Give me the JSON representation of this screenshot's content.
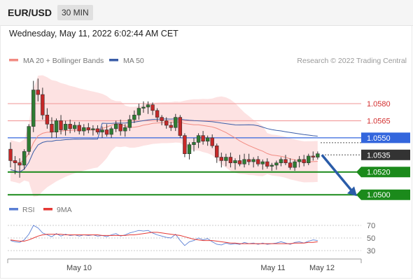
{
  "header": {
    "symbol": "EUR/USD",
    "timeframe": "30 MIN"
  },
  "timestamp": "Wednesday, May 11, 2022 6:02:44 AM CET",
  "legend": {
    "items": [
      {
        "label": "MA 20 + Bollinger Bands",
        "color": "#f28b82"
      },
      {
        "label": "MA 50",
        "color": "#3b5ea8"
      }
    ],
    "copyright": "Research © 2022 Trading Central"
  },
  "rsi_legend": {
    "items": [
      {
        "label": "RSI",
        "color": "#5b7fd4"
      },
      {
        "label": "9MA",
        "color": "#e53935"
      }
    ]
  },
  "colors": {
    "up": "#2e7d32",
    "down": "#c62828",
    "green_level": "#1b8a1b",
    "blue_level": "#3366dd",
    "red_level": "#f2a0a0",
    "band": "#fde2e2",
    "arrow": "#2a5ca8"
  },
  "chart_data": [
    {
      "type": "candlestick",
      "yrange": [
        1.0494,
        1.0612
      ],
      "levels": [
        {
          "value": 1.058,
          "label": "1.0580",
          "kind": "resistance-red"
        },
        {
          "value": 1.0565,
          "label": "1.0565",
          "kind": "resistance-red"
        },
        {
          "value": 1.055,
          "label": "1.0550",
          "kind": "blue"
        },
        {
          "value": 1.0535,
          "label": "1.0535",
          "kind": "current"
        },
        {
          "value": 1.052,
          "label": "1.0520",
          "kind": "support-green"
        },
        {
          "value": 1.05,
          "label": "1.0500",
          "kind": "target-green"
        }
      ],
      "x_labels": [
        "May 10",
        "May 11",
        "May 12"
      ],
      "forecast": {
        "from": 1.0535,
        "to": 1.05,
        "direction": "down"
      },
      "candles": [
        [
          1.054,
          1.0546,
          1.0524,
          1.053
        ],
        [
          1.053,
          1.0534,
          1.0518,
          1.0528
        ],
        [
          1.0528,
          1.0532,
          1.0515,
          1.0526
        ],
        [
          1.0526,
          1.054,
          1.0522,
          1.0538
        ],
        [
          1.0538,
          1.0562,
          1.0535,
          1.056
        ],
        [
          1.056,
          1.06,
          1.0555,
          1.0592
        ],
        [
          1.0592,
          1.0602,
          1.0582,
          1.0588
        ],
        [
          1.0588,
          1.0594,
          1.0566,
          1.057
        ],
        [
          1.057,
          1.0576,
          1.0558,
          1.0562
        ],
        [
          1.0562,
          1.0568,
          1.055,
          1.0555
        ],
        [
          1.0555,
          1.0567,
          1.055,
          1.0565
        ],
        [
          1.0565,
          1.057,
          1.0553,
          1.0557
        ],
        [
          1.0557,
          1.0565,
          1.0552,
          1.0562
        ],
        [
          1.0562,
          1.0566,
          1.0554,
          1.0558
        ],
        [
          1.0558,
          1.0564,
          1.0555,
          1.0561
        ],
        [
          1.0561,
          1.0564,
          1.0553,
          1.0556
        ],
        [
          1.0556,
          1.0562,
          1.0552,
          1.0559
        ],
        [
          1.0559,
          1.0563,
          1.0554,
          1.0557
        ],
        [
          1.0557,
          1.0561,
          1.0552,
          1.0558
        ],
        [
          1.0558,
          1.0561,
          1.0553,
          1.0555
        ],
        [
          1.0555,
          1.056,
          1.055,
          1.0557
        ],
        [
          1.0557,
          1.0562,
          1.0551,
          1.0553
        ],
        [
          1.0553,
          1.056,
          1.055,
          1.0558
        ],
        [
          1.0558,
          1.0565,
          1.0555,
          1.0562
        ],
        [
          1.0562,
          1.0566,
          1.0552,
          1.0556
        ],
        [
          1.0556,
          1.0562,
          1.0551,
          1.0559
        ],
        [
          1.0559,
          1.057,
          1.0556,
          1.0566
        ],
        [
          1.0566,
          1.0574,
          1.0563,
          1.057
        ],
        [
          1.057,
          1.058,
          1.0566,
          1.0576
        ],
        [
          1.0576,
          1.0582,
          1.0572,
          1.0577
        ],
        [
          1.0577,
          1.0582,
          1.0571,
          1.0579
        ],
        [
          1.0579,
          1.0581,
          1.057,
          1.0574
        ],
        [
          1.0574,
          1.0576,
          1.0564,
          1.0568
        ],
        [
          1.0568,
          1.057,
          1.0561,
          1.0565
        ],
        [
          1.0565,
          1.0568,
          1.0558,
          1.0561
        ],
        [
          1.0561,
          1.0564,
          1.0556,
          1.0559
        ],
        [
          1.0559,
          1.0571,
          1.0556,
          1.0568
        ],
        [
          1.0568,
          1.057,
          1.055,
          1.0552
        ],
        [
          1.0552,
          1.0554,
          1.0533,
          1.0536
        ],
        [
          1.0536,
          1.0546,
          1.0531,
          1.0544
        ],
        [
          1.0544,
          1.055,
          1.0538,
          1.0546
        ],
        [
          1.0546,
          1.0554,
          1.0541,
          1.0552
        ],
        [
          1.0552,
          1.0556,
          1.0544,
          1.0547
        ],
        [
          1.0547,
          1.0552,
          1.0543,
          1.055
        ],
        [
          1.055,
          1.0553,
          1.0541,
          1.0543
        ],
        [
          1.0543,
          1.0545,
          1.0528,
          1.0533
        ],
        [
          1.0533,
          1.0537,
          1.0524,
          1.053
        ],
        [
          1.053,
          1.0536,
          1.0525,
          1.0533
        ],
        [
          1.0533,
          1.0537,
          1.0524,
          1.0528
        ],
        [
          1.0528,
          1.0532,
          1.0522,
          1.053
        ],
        [
          1.053,
          1.0535,
          1.0525,
          1.0527
        ],
        [
          1.0527,
          1.0536,
          1.0524,
          1.0531
        ],
        [
          1.0531,
          1.0536,
          1.0526,
          1.0529
        ],
        [
          1.0529,
          1.0533,
          1.0524,
          1.0531
        ],
        [
          1.0531,
          1.0534,
          1.0525,
          1.0527
        ],
        [
          1.0527,
          1.0531,
          1.0522,
          1.0529
        ],
        [
          1.0529,
          1.0532,
          1.0523,
          1.0525
        ],
        [
          1.0525,
          1.0528,
          1.0521,
          1.0526
        ],
        [
          1.0526,
          1.053,
          1.0522,
          1.0528
        ],
        [
          1.0528,
          1.0533,
          1.0525,
          1.0531
        ],
        [
          1.0531,
          1.0535,
          1.0526,
          1.0528
        ],
        [
          1.0528,
          1.0532,
          1.0522,
          1.0524
        ],
        [
          1.0524,
          1.0531,
          1.0521,
          1.0529
        ],
        [
          1.0529,
          1.0534,
          1.0524,
          1.0531
        ],
        [
          1.0531,
          1.0535,
          1.0525,
          1.0528
        ],
        [
          1.0528,
          1.0536,
          1.0526,
          1.0534
        ],
        [
          1.0534,
          1.0538,
          1.053,
          1.0533
        ],
        [
          1.0533,
          1.0538,
          1.0531,
          1.0536
        ]
      ]
    },
    {
      "type": "line",
      "title": "RSI",
      "yticks": [
        70,
        50,
        30
      ],
      "series": [
        {
          "name": "RSI",
          "values": [
            46,
            44,
            43,
            47,
            56,
            70,
            66,
            58,
            55,
            52,
            57,
            53,
            56,
            54,
            55,
            53,
            55,
            54,
            55,
            53,
            54,
            52,
            55,
            57,
            53,
            55,
            58,
            60,
            62,
            61,
            62,
            58,
            55,
            53,
            51,
            50,
            56,
            46,
            38,
            44,
            46,
            50,
            47,
            49,
            44,
            40,
            39,
            42,
            40,
            41,
            40,
            43,
            41,
            42,
            40,
            42,
            40,
            41,
            42,
            44,
            42,
            40,
            43,
            44,
            42,
            45,
            47,
            46
          ]
        },
        {
          "name": "9MA",
          "values": [
            47,
            46,
            45,
            45,
            47,
            50,
            53,
            55,
            56,
            56,
            56,
            56,
            55,
            55,
            55,
            55,
            55,
            55,
            55,
            55,
            54,
            54,
            54,
            54,
            54,
            54,
            55,
            55,
            56,
            57,
            58,
            59,
            59,
            58,
            57,
            56,
            55,
            54,
            52,
            50,
            48,
            47,
            46,
            46,
            46,
            45,
            44,
            43,
            42,
            42,
            41,
            41,
            41,
            41,
            41,
            41,
            41,
            41,
            41,
            41,
            41,
            41,
            42,
            42,
            42,
            43,
            43,
            44
          ]
        }
      ]
    }
  ]
}
